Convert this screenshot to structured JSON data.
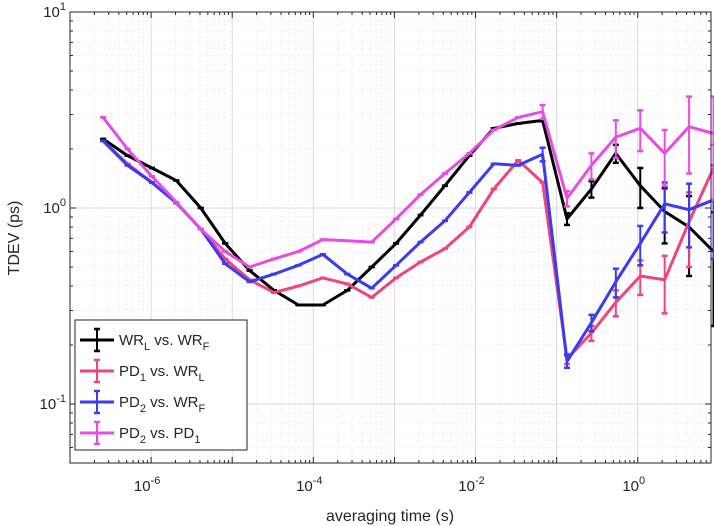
{
  "chart_data": {
    "type": "line",
    "xlabel": "averaging time (s)",
    "ylabel": "TDEV (ps)",
    "xscale": "log",
    "yscale": "log",
    "xlim": [
      1e-07,
      8
    ],
    "ylim": [
      0.05,
      10
    ],
    "x_ticks": [
      {
        "value": 1e-06,
        "base": "10",
        "exp": "-6"
      },
      {
        "value": 0.0001,
        "base": "10",
        "exp": "-4"
      },
      {
        "value": 0.01,
        "base": "10",
        "exp": "-2"
      },
      {
        "value": 1,
        "base": "10",
        "exp": "0"
      }
    ],
    "y_ticks": [
      {
        "value": 0.1,
        "base": "10",
        "exp": "-1"
      },
      {
        "value": 1,
        "base": "10",
        "exp": "0"
      },
      {
        "value": 10,
        "base": "10",
        "exp": "1"
      }
    ],
    "grid": true,
    "legend_position": "bottom-left",
    "series": [
      {
        "name": "WR_L vs. WR_F",
        "legend": {
          "a": "WR",
          "a_sub": "L",
          "mid": " vs. ",
          "b": "WR",
          "b_sub": "F"
        },
        "color": "#000000",
        "x": [
          2.56e-07,
          5.12e-07,
          1.024e-06,
          2.048e-06,
          4.096e-06,
          8.192e-06,
          1.6384e-05,
          3.2768e-05,
          6.5536e-05,
          0.000131072,
          0.000262144,
          0.000524288,
          0.001048576,
          0.002097152,
          0.004194304,
          0.008388608,
          0.016777216,
          0.033554432,
          0.067108864,
          0.134217728,
          0.268435456,
          0.536870912,
          1.073741824,
          2.147483648,
          4.294967296,
          8.589934592
        ],
        "y": [
          2.25,
          1.85,
          1.6,
          1.38,
          1.0,
          0.66,
          0.48,
          0.38,
          0.32,
          0.32,
          0.38,
          0.5,
          0.66,
          0.92,
          1.3,
          1.85,
          2.55,
          2.7,
          2.8,
          0.88,
          1.25,
          1.9,
          1.3,
          0.96,
          0.8,
          0.6
        ],
        "err": [
          0,
          0,
          0,
          0,
          0,
          0,
          0,
          0,
          0,
          0,
          0,
          0,
          0,
          0,
          0,
          0,
          0,
          0,
          0,
          0.06,
          0.12,
          0.2,
          0.3,
          0.3,
          0.35,
          0.35
        ]
      },
      {
        "name": "PD_1 vs. WR_L",
        "legend": {
          "a": "PD",
          "a_sub": "1",
          "mid": " vs. ",
          "b": "WR",
          "b_sub": "L"
        },
        "color": "#f0457a",
        "x": [
          2.56e-07,
          5.12e-07,
          1.024e-06,
          2.048e-06,
          4.096e-06,
          8.192e-06,
          1.6384e-05,
          3.2768e-05,
          6.5536e-05,
          0.000131072,
          0.000262144,
          0.000524288,
          0.001048576,
          0.002097152,
          0.004194304,
          0.008388608,
          0.016777216,
          0.033554432,
          0.067108864,
          0.134217728,
          0.268435456,
          0.536870912,
          1.073741824,
          2.147483648,
          4.294967296,
          8.589934592
        ],
        "y": [
          2.2,
          1.68,
          1.35,
          1.06,
          0.78,
          0.55,
          0.43,
          0.37,
          0.4,
          0.44,
          0.41,
          0.35,
          0.44,
          0.53,
          0.62,
          0.8,
          1.25,
          1.75,
          1.35,
          0.17,
          0.23,
          0.33,
          0.45,
          0.43,
          0.85,
          1.6
        ],
        "err": [
          0,
          0,
          0,
          0,
          0,
          0,
          0,
          0,
          0,
          0,
          0,
          0,
          0,
          0,
          0,
          0,
          0,
          0,
          0,
          0.01,
          0.02,
          0.05,
          0.09,
          0.14,
          0.35,
          0.5
        ]
      },
      {
        "name": "PD_2 vs. WR_F",
        "legend": {
          "a": "PD",
          "a_sub": "2",
          "mid": " vs. ",
          "b": "WR",
          "b_sub": "F"
        },
        "color": "#3b3bf0",
        "x": [
          2.56e-07,
          5.12e-07,
          1.024e-06,
          2.048e-06,
          4.096e-06,
          8.192e-06,
          1.6384e-05,
          3.2768e-05,
          6.5536e-05,
          0.000131072,
          0.000262144,
          0.000524288,
          0.001048576,
          0.002097152,
          0.004194304,
          0.008388608,
          0.016777216,
          0.033554432,
          0.067108864,
          0.134217728,
          0.268435456,
          0.536870912,
          1.073741824,
          2.147483648,
          4.294967296,
          8.589934592
        ],
        "y": [
          2.2,
          1.65,
          1.35,
          1.06,
          0.78,
          0.52,
          0.42,
          0.46,
          0.51,
          0.58,
          0.46,
          0.39,
          0.51,
          0.67,
          0.86,
          1.2,
          1.68,
          1.65,
          1.88,
          0.165,
          0.26,
          0.42,
          0.66,
          1.05,
          0.98,
          1.1
        ],
        "err": [
          0,
          0,
          0,
          0,
          0,
          0,
          0,
          0,
          0,
          0,
          0,
          0,
          0,
          0,
          0,
          0,
          0,
          0,
          0.15,
          0.012,
          0.025,
          0.07,
          0.15,
          0.3,
          0.35,
          0.55
        ]
      },
      {
        "name": "PD_2 vs. PD_1",
        "legend": {
          "a": "PD",
          "a_sub": "2",
          "mid": " vs. ",
          "b": "PD",
          "b_sub": "1"
        },
        "color": "#e54ee5",
        "x": [
          2.56e-07,
          5.12e-07,
          1.024e-06,
          2.048e-06,
          4.096e-06,
          8.192e-06,
          1.6384e-05,
          3.2768e-05,
          6.5536e-05,
          0.000131072,
          0.000262144,
          0.000524288,
          0.001048576,
          0.002097152,
          0.004194304,
          0.008388608,
          0.016777216,
          0.033554432,
          0.067108864,
          0.134217728,
          0.268435456,
          0.536870912,
          1.073741824,
          2.147483648,
          4.294967296,
          8.589934592
        ],
        "y": [
          2.9,
          2.0,
          1.45,
          1.07,
          0.78,
          0.6,
          0.5,
          0.55,
          0.6,
          0.69,
          0.68,
          0.67,
          0.88,
          1.17,
          1.5,
          1.9,
          2.5,
          2.9,
          3.1,
          1.12,
          1.65,
          2.3,
          2.55,
          1.9,
          2.6,
          2.4
        ],
        "err": [
          0,
          0,
          0,
          0,
          0,
          0,
          0,
          0,
          0,
          0,
          0,
          0,
          0,
          0,
          0,
          0,
          0,
          0,
          0.25,
          0.1,
          0.25,
          0.5,
          0.6,
          0.6,
          1.1,
          1.3
        ]
      }
    ]
  }
}
